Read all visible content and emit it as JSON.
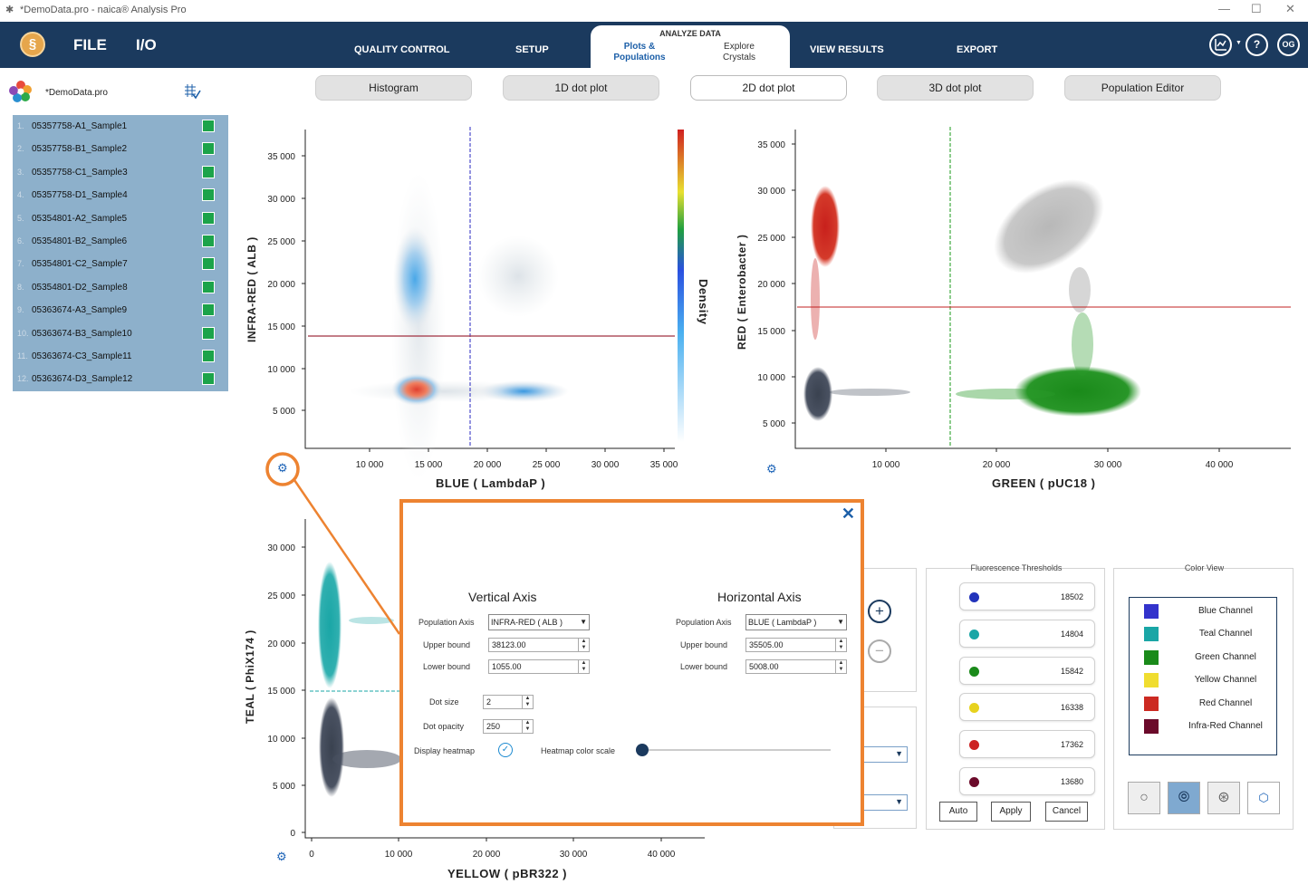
{
  "window": {
    "title": "*DemoData.pro - naica® Analysis Pro",
    "min": "—",
    "max": "☐",
    "close": "✕"
  },
  "nav": {
    "file": "FILE",
    "io": "I/O",
    "quality_control": "QUALITY CONTROL",
    "setup": "SETUP",
    "analyze_data": "ANALYZE DATA",
    "plots_populations": "Plots &\nPopulations",
    "explore_crystals": "Explore\nCrystals",
    "view_results": "VIEW RESULTS",
    "export": "EXPORT",
    "help": "?",
    "user": "OG"
  },
  "sidebar": {
    "file_name": "*DemoData.pro",
    "samples": [
      {
        "n": "1.",
        "label": "05357758-A1_Sample1"
      },
      {
        "n": "2.",
        "label": "05357758-B1_Sample2"
      },
      {
        "n": "3.",
        "label": "05357758-C1_Sample3"
      },
      {
        "n": "4.",
        "label": "05357758-D1_Sample4"
      },
      {
        "n": "5.",
        "label": "05354801-A2_Sample5"
      },
      {
        "n": "6.",
        "label": "05354801-B2_Sample6"
      },
      {
        "n": "7.",
        "label": "05354801-C2_Sample7"
      },
      {
        "n": "8.",
        "label": "05354801-D2_Sample8"
      },
      {
        "n": "9.",
        "label": "05363674-A3_Sample9"
      },
      {
        "n": "10.",
        "label": "05363674-B3_Sample10"
      },
      {
        "n": "11.",
        "label": "05363674-C3_Sample11"
      },
      {
        "n": "12.",
        "label": "05363674-D3_Sample12"
      }
    ]
  },
  "plot_tabs": {
    "histogram": "Histogram",
    "dot1d": "1D dot plot",
    "dot2d": "2D dot plot",
    "dot3d": "3D dot plot",
    "pop_editor": "Population Editor"
  },
  "plot1": {
    "ylabel": "INFRA-RED  ( ALB )",
    "xlabel": "BLUE  ( LambdaP )",
    "density": "Density",
    "yticks": [
      "35 000",
      "30 000",
      "25 000",
      "20 000",
      "15 000",
      "10 000",
      "5 000"
    ],
    "xticks": [
      "10 000",
      "15 000",
      "20 000",
      "25 000",
      "30 000",
      "35 000"
    ]
  },
  "plot2": {
    "ylabel": "RED  ( Enterobacter )",
    "xlabel": "GREEN  ( pUC18 )",
    "yticks": [
      "35 000",
      "30 000",
      "25 000",
      "20 000",
      "15 000",
      "10 000",
      "5 000"
    ],
    "xticks": [
      "10 000",
      "20 000",
      "30 000",
      "40 000"
    ]
  },
  "plot3": {
    "ylabel": "TEAL  ( PhiX174 )",
    "xlabel": "YELLOW  ( pBR322 )",
    "yticks": [
      "30 000",
      "25 000",
      "20 000",
      "15 000",
      "10 000",
      "5 000",
      "0"
    ],
    "xticks": [
      "0",
      "10 000",
      "20 000",
      "30 000",
      "40 000"
    ]
  },
  "dialog": {
    "close": "✕",
    "vertical": {
      "title": "Vertical Axis",
      "pop_axis_label": "Population Axis",
      "pop_axis_value": "INFRA-RED  ( ALB )",
      "upper_label": "Upper bound",
      "upper_value": "38123.00",
      "lower_label": "Lower bound",
      "lower_value": "1055.00"
    },
    "horizontal": {
      "title": "Horizontal Axis",
      "pop_axis_label": "Population Axis",
      "pop_axis_value": "BLUE  ( LambdaP )",
      "upper_label": "Upper bound",
      "upper_value": "35505.00",
      "lower_label": "Lower bound",
      "lower_value": "5008.00"
    },
    "dot_size_label": "Dot size",
    "dot_size_value": "2",
    "dot_opacity_label": "Dot opacity",
    "dot_opacity_value": "250",
    "display_heatmap_label": "Display heatmap",
    "heatmap_scale_label": "Heatmap color scale",
    "heatmap_scale_value": 0.0
  },
  "thresholds": {
    "title": "Fluorescence Thresholds",
    "items": [
      {
        "color": "#2233bb",
        "value": "18502"
      },
      {
        "color": "#1aa6a6",
        "value": "14804"
      },
      {
        "color": "#1a8a1a",
        "value": "15842"
      },
      {
        "color": "#e7d21e",
        "value": "16338"
      },
      {
        "color": "#cc2222",
        "value": "17362"
      },
      {
        "color": "#6b0a2a",
        "value": "13680"
      }
    ],
    "auto": "Auto",
    "apply": "Apply",
    "cancel": "Cancel"
  },
  "color_view": {
    "title": "Color View",
    "items": [
      {
        "color": "#3333cc",
        "label": "Blue Channel"
      },
      {
        "color": "#1aa6a6",
        "label": "Teal Channel"
      },
      {
        "color": "#1a8a1a",
        "label": "Green Channel"
      },
      {
        "color": "#f0dd30",
        "label": "Yellow Channel"
      },
      {
        "color": "#cc2a22",
        "label": "Red Channel"
      },
      {
        "color": "#6b0a2a",
        "label": "Infra-Red Channel"
      }
    ]
  }
}
